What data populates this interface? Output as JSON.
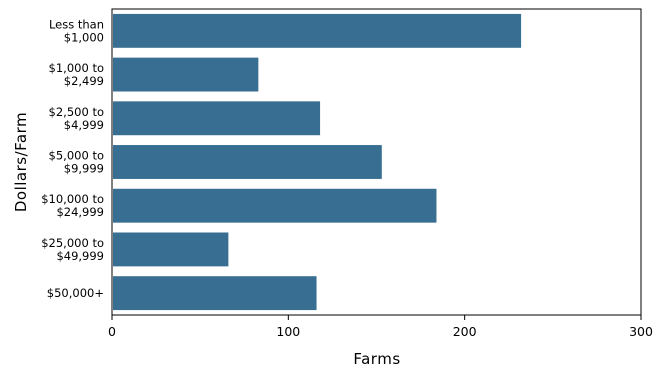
{
  "chart_data": {
    "type": "bar",
    "orientation": "horizontal",
    "categories": [
      [
        "Less than",
        "$1,000"
      ],
      [
        "$1,000 to",
        "$2,499"
      ],
      [
        "$2,500 to",
        "$4,999"
      ],
      [
        "$5,000 to",
        "$9,999"
      ],
      [
        "$10,000 to",
        "$24,999"
      ],
      [
        "$25,000 to",
        "$49,999"
      ],
      [
        "$50,000+"
      ]
    ],
    "values": [
      232,
      83,
      118,
      153,
      184,
      66,
      116
    ],
    "xlabel": "Farms",
    "ylabel": "Dollars/Farm",
    "xlim": [
      0,
      300
    ],
    "xticks": [
      0,
      100,
      200,
      300
    ],
    "bar_color": "#376e91",
    "grid": false
  }
}
